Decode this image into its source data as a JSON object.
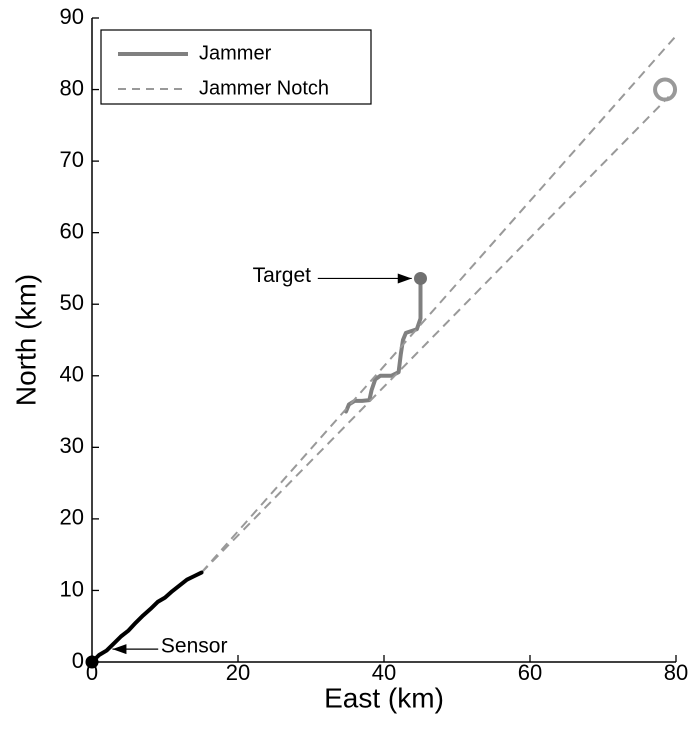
{
  "chart_data": {
    "type": "line",
    "xlabel": "East (km)",
    "ylabel": "North (km)",
    "xlim": [
      0,
      80
    ],
    "ylim": [
      0,
      90
    ],
    "xticks": [
      0,
      20,
      40,
      60,
      80
    ],
    "yticks": [
      0,
      10,
      20,
      30,
      40,
      50,
      60,
      70,
      80,
      90
    ],
    "grid": false,
    "legend_position": "top-left",
    "series": [
      {
        "name": "Jammer",
        "style": "solid",
        "color": "#808080",
        "x": [
          34.8,
          35.2,
          36,
          37,
          38,
          38.3,
          38.8,
          39.5,
          41,
          42,
          42.3,
          42.6,
          43,
          44.5,
          45,
          45,
          45
        ],
        "y": [
          35,
          36,
          36.5,
          36.5,
          36.6,
          38,
          39.5,
          40,
          40,
          40.5,
          43,
          45,
          46,
          46.5,
          48,
          51,
          53.6
        ]
      },
      {
        "name": "Jammer Notch",
        "style": "dashed",
        "color": "#999999",
        "lines": [
          {
            "x": [
              15,
              80
            ],
            "y": [
              12.5,
              87.5
            ]
          },
          {
            "x": [
              15,
              79
            ],
            "y": [
              12.5,
              79
            ]
          }
        ]
      },
      {
        "name": "",
        "style": "solid",
        "color": "#000000",
        "x": [
          0,
          1,
          2,
          3,
          4,
          5,
          6,
          7,
          8,
          9,
          10,
          11,
          12,
          13,
          14,
          15
        ],
        "y": [
          0,
          1,
          1.6,
          2.6,
          3.6,
          4.4,
          5.5,
          6.5,
          7.4,
          8.4,
          9,
          9.9,
          10.7,
          11.5,
          12,
          12.5
        ]
      }
    ],
    "markers": [
      {
        "name": "target-marker",
        "x": 45,
        "y": 53.6,
        "color": "#707070",
        "shape": "filled-circle"
      },
      {
        "name": "sensor-marker",
        "x": 0,
        "y": 0,
        "color": "#000000",
        "shape": "filled-circle"
      },
      {
        "name": "end-ring-marker",
        "x": 78.5,
        "y": 80,
        "color": "#999999",
        "shape": "open-circle"
      }
    ],
    "annotations": [
      {
        "text": "Target",
        "text_x": 26,
        "text_y": 53.6,
        "arrow_to_x": 43.8,
        "arrow_to_y": 53.6
      },
      {
        "text": "Sensor",
        "text_x": 14,
        "text_y": 1.8,
        "arrow_to_x": 2.8,
        "arrow_to_y": 1.8
      }
    ]
  }
}
